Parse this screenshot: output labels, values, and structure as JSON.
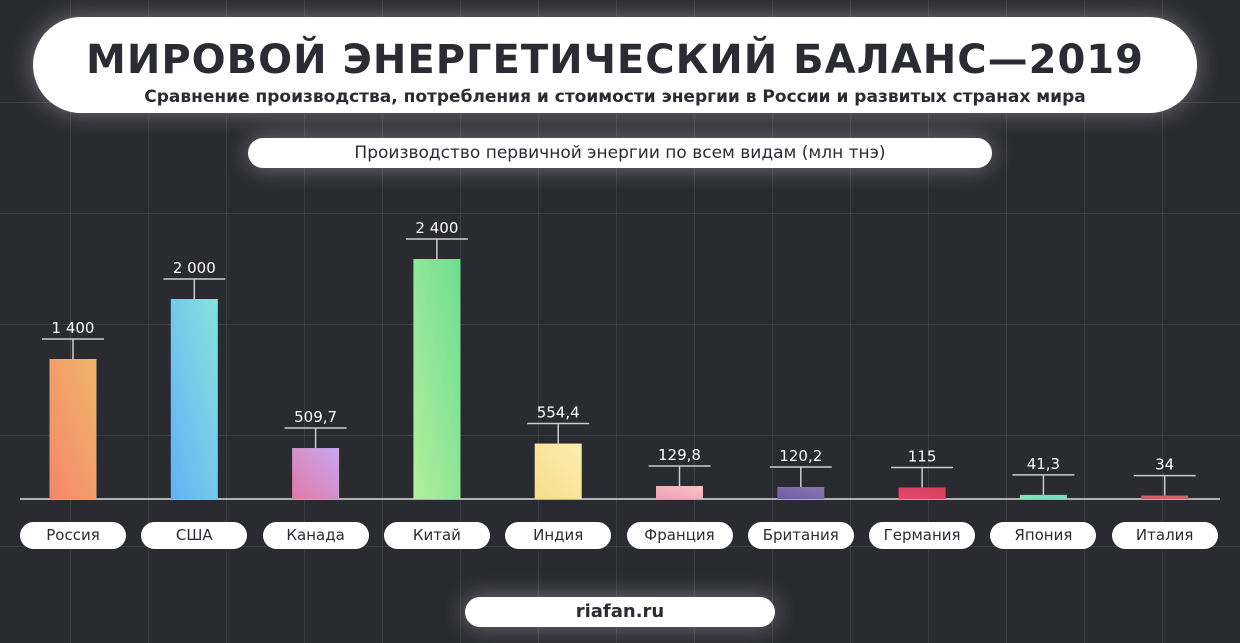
{
  "header": {
    "title": "МИРОВОЙ ЭНЕРГЕТИЧЕСКИЙ БАЛАНС—2019",
    "subtitle": "Сравнение производства, потребления и стоимости энергии в России и развитых странах мира"
  },
  "source": "riafan.ru",
  "chart_data": {
    "type": "bar",
    "title": "Производство первичной энергии по всем видам (млн тнэ)",
    "categories": [
      "Россия",
      "США",
      "Канада",
      "Китай",
      "Индия",
      "Франция",
      "Британия",
      "Германия",
      "Япония",
      "Италия"
    ],
    "values": [
      1400,
      2000,
      509.7,
      2400,
      554.4,
      129.8,
      120.2,
      115,
      41.3,
      34
    ],
    "value_labels": [
      "1 400",
      "2 000",
      "509,7",
      "2 400",
      "554,4",
      "129,8",
      "120,2",
      "115",
      "41,3",
      "34"
    ],
    "colors": [
      [
        "#f5876a",
        "#efb56a"
      ],
      [
        "#62b1f7",
        "#86e3dc"
      ],
      [
        "#e07aa8",
        "#c9a6f0"
      ],
      [
        "#b2ef9c",
        "#6edd92"
      ],
      [
        "#f8dc8a",
        "#fbeeb0"
      ],
      [
        "#eea0b8",
        "#f9c3c3"
      ],
      [
        "#6c5ca0",
        "#8c78b8"
      ],
      [
        "#e8466f",
        "#d8405a"
      ],
      [
        "#8be6a8",
        "#6fd6d6"
      ],
      [
        "#d05560",
        "#c87070"
      ]
    ],
    "ylim": [
      0,
      2400
    ]
  }
}
